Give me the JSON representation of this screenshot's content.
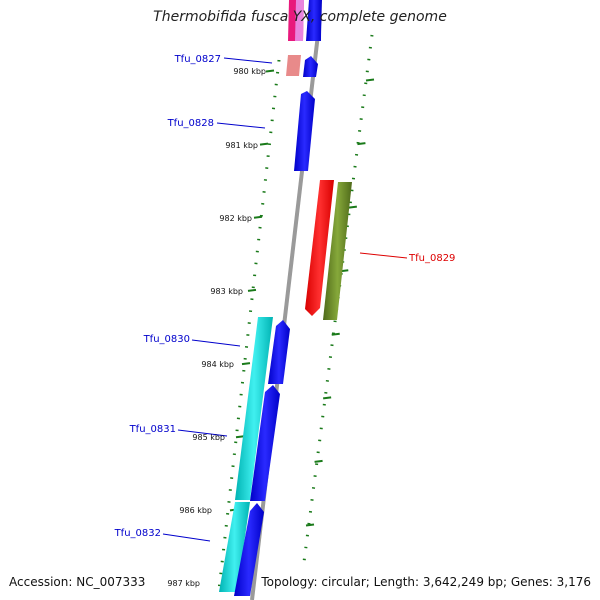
{
  "title": "Thermobifida fusca YX, complete genome",
  "footer": {
    "accession": "Accession: NC_007333",
    "summary": "Topology: circular; Length: 3,642,249 bp; Genes: 3,176"
  },
  "colors": {
    "forward_cds": "#0000ee",
    "reverse_cds": "#ff0000",
    "gene_span": "#00cccc",
    "reverse_gene_span": "#6b8e23",
    "tick": "#1a7a1a",
    "backbone": "#888888",
    "label_forward": "#0000cc",
    "label_reverse": "#dd0000"
  },
  "ruler": {
    "ticks": [
      "980 kbp",
      "981 kbp",
      "982 kbp",
      "983 kbp",
      "984 kbp",
      "985 kbp",
      "986 kbp",
      "987 kbp"
    ]
  },
  "genes": [
    {
      "name": "Tfu_0827",
      "strand": "forward"
    },
    {
      "name": "Tfu_0828",
      "strand": "forward"
    },
    {
      "name": "Tfu_0829",
      "strand": "reverse"
    },
    {
      "name": "Tfu_0830",
      "strand": "forward"
    },
    {
      "name": "Tfu_0831",
      "strand": "forward"
    },
    {
      "name": "Tfu_0832",
      "strand": "forward"
    }
  ]
}
